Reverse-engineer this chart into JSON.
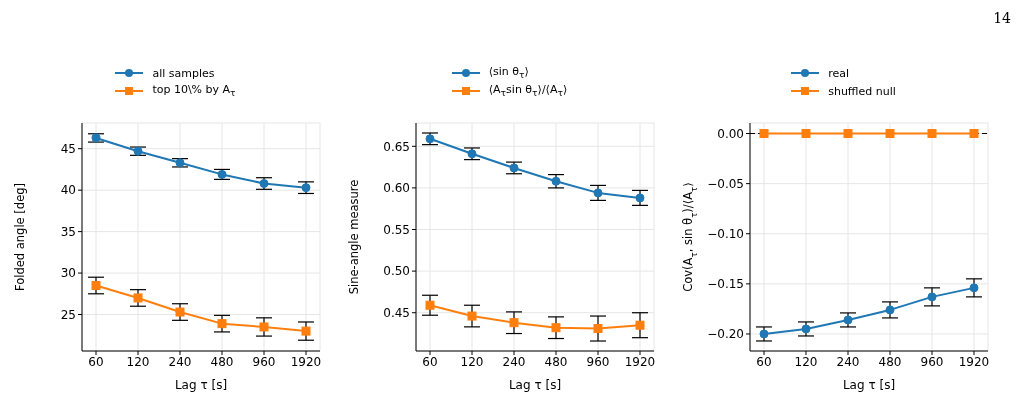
{
  "chart_data": [
    {
      "type": "line",
      "xlabel": "Lag τ [s]",
      "ylabel": "Folded angle [deg]",
      "categories": [
        "60",
        "120",
        "240",
        "480",
        "960",
        "1920"
      ],
      "ylim": [
        20.6,
        48.1
      ],
      "yticks": [
        25,
        30,
        35,
        40,
        45
      ],
      "grid": true,
      "legend": "top",
      "series": [
        {
          "name": "all samples",
          "color": "#1f77b4",
          "marker": "circle",
          "values": [
            46.3,
            44.7,
            43.3,
            41.9,
            40.8,
            40.3
          ],
          "errors": [
            0.5,
            0.5,
            0.5,
            0.6,
            0.7,
            0.7
          ]
        },
        {
          "name": "top 10\\% by A$_{τ}$",
          "color": "#ff7f0e",
          "marker": "square",
          "values": [
            28.5,
            27.0,
            25.3,
            23.9,
            23.5,
            23.0
          ],
          "errors": [
            1.0,
            1.0,
            1.0,
            1.0,
            1.1,
            1.1
          ]
        }
      ]
    },
    {
      "type": "line",
      "xlabel": "Lag τ [s]",
      "ylabel": "Sine-angle measure",
      "categories": [
        "60",
        "120",
        "240",
        "480",
        "960",
        "1920"
      ],
      "ylim": [
        0.404,
        0.678
      ],
      "yticks": [
        {
          "value": 0.45,
          "label": "0.45"
        },
        {
          "value": 0.5,
          "label": "0.50"
        },
        {
          "value": 0.55,
          "label": "0.55"
        },
        {
          "value": 0.6,
          "label": "0.60"
        },
        {
          "value": 0.65,
          "label": "0.65"
        }
      ],
      "grid": true,
      "legend": "top",
      "series": [
        {
          "name": "⟨sin θ$_{τ}$⟩",
          "color": "#1f77b4",
          "marker": "circle",
          "values": [
            0.659,
            0.641,
            0.624,
            0.608,
            0.594,
            0.588
          ],
          "errors": [
            0.007,
            0.007,
            0.007,
            0.008,
            0.009,
            0.009
          ]
        },
        {
          "name": "⟨A$_{τ}$sin θ$_{τ}$⟩/⟨A$_{τ}$⟩",
          "color": "#ff7f0e",
          "marker": "square",
          "values": [
            0.459,
            0.446,
            0.438,
            0.432,
            0.431,
            0.435
          ],
          "errors": [
            0.012,
            0.013,
            0.013,
            0.013,
            0.015,
            0.015
          ]
        }
      ]
    },
    {
      "type": "line",
      "xlabel": "Lag τ [s]",
      "ylabel": "Cov(A$_{τ}$, sin θ$_{τ}$)/⟨A$_{τ}$⟩",
      "categories": [
        "60",
        "120",
        "240",
        "480",
        "960",
        "1920"
      ],
      "ylim": [
        -0.217,
        0.0105
      ],
      "yticks": [
        {
          "value": -0.2,
          "label": "−0.20"
        },
        {
          "value": -0.15,
          "label": "−0.15"
        },
        {
          "value": -0.1,
          "label": "−0.10"
        },
        {
          "value": -0.05,
          "label": "−0.05"
        },
        {
          "value": 0,
          "label": "0.00"
        }
      ],
      "grid": true,
      "legend": "top",
      "ref_lines": [
        {
          "axis": "y",
          "value": 0,
          "color": "#000000",
          "line_style": "dashed"
        }
      ],
      "annotations": [
        "14"
      ],
      "series": [
        {
          "name": "real",
          "color": "#1f77b4",
          "marker": "circle",
          "values": [
            -0.2,
            -0.195,
            -0.186,
            -0.176,
            -0.163,
            -0.154
          ],
          "errors": [
            0.007,
            0.007,
            0.007,
            0.008,
            0.009,
            0.009
          ]
        },
        {
          "name": "shuffled null",
          "color": "#ff7f0e",
          "marker": "square",
          "values": [
            0,
            0,
            0,
            0,
            0,
            0
          ]
        }
      ]
    }
  ]
}
